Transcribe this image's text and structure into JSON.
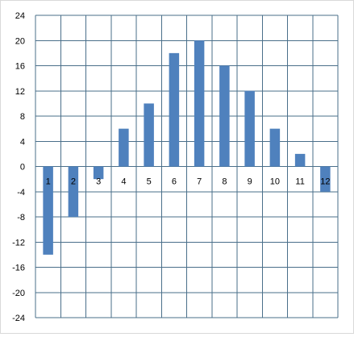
{
  "chart_data": {
    "type": "bar",
    "categories": [
      "1",
      "2",
      "3",
      "4",
      "5",
      "6",
      "7",
      "8",
      "9",
      "10",
      "11",
      "12"
    ],
    "values": [
      -14,
      -8,
      -2,
      6,
      10,
      18,
      20,
      16,
      12,
      6,
      2,
      -4
    ],
    "y_ticks": [
      "-24",
      "-20",
      "-16",
      "-12",
      "-8",
      "-4",
      "0",
      "4",
      "8",
      "12",
      "16",
      "20",
      "24"
    ],
    "ylim": [
      -24,
      24
    ],
    "y_step": 4,
    "grid": true,
    "legend": "none",
    "bar_color": "#4f81bd",
    "grid_color": "#4a6f8a"
  }
}
